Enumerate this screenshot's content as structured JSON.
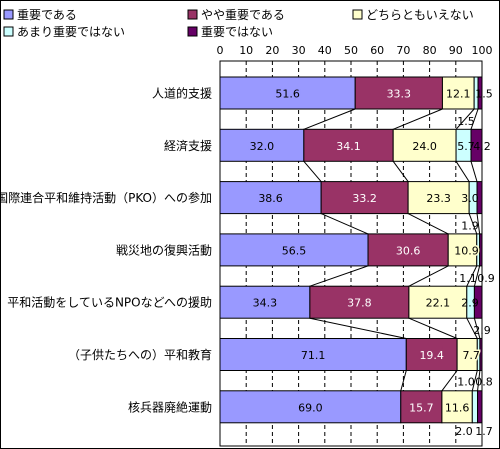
{
  "chart_data": {
    "type": "bar",
    "orientation": "horizontal",
    "stacked": true,
    "categories": [
      "人道的支援",
      "経済支援",
      "国際連合平和維持活動（PKO）への参加",
      "戦災地の復興活動",
      "平和活動をしているNPOなどへの援助",
      "（子供たちへの）平和教育",
      "核兵器廃絶運動"
    ],
    "series": [
      {
        "name": "重要である",
        "color": "#9999ff",
        "values": [
          51.6,
          32.0,
          38.6,
          56.5,
          34.3,
          71.1,
          69.0
        ]
      },
      {
        "name": "やや重要である",
        "color": "#993366",
        "values": [
          33.3,
          34.1,
          33.2,
          30.6,
          37.8,
          19.4,
          15.7
        ]
      },
      {
        "name": "どちらともいえない",
        "color": "#ffffcc",
        "values": [
          12.1,
          24.0,
          23.3,
          10.9,
          22.1,
          7.7,
          11.6
        ]
      },
      {
        "name": "あまり重要ではない",
        "color": "#ccffff",
        "values": [
          1.5,
          5.7,
          3.0,
          1.1,
          2.9,
          1.0,
          2.0
        ]
      },
      {
        "name": "重要ではない",
        "color": "#660066",
        "values": [
          1.5,
          4.2,
          1.9,
          0.9,
          2.9,
          0.8,
          1.7
        ]
      }
    ],
    "data_labels": [
      [
        "51.6",
        "33.3",
        "12.1",
        "1.5",
        "1.5"
      ],
      [
        "32.0",
        "34.1",
        "24.0",
        "5.7",
        "4.2"
      ],
      [
        "38.6",
        "33.2",
        "23.3",
        "3.0",
        "1.9"
      ],
      [
        "56.5",
        "30.6",
        "10.9",
        "1.1",
        "0.9"
      ],
      [
        "34.3",
        "37.8",
        "22.1",
        "2.9",
        "2.9"
      ],
      [
        "71.1",
        "19.4",
        "7.7",
        "1.0",
        "0.8"
      ],
      [
        "69.0",
        "15.7",
        "11.6",
        "2.0",
        "1.7"
      ]
    ],
    "xticks": [
      "0",
      "10",
      "20",
      "30",
      "40",
      "50",
      "60",
      "70",
      "80",
      "90",
      "100"
    ],
    "xlim": [
      0,
      100
    ],
    "grid": "vertical-dashed",
    "series_lines": true,
    "legend": "top"
  }
}
